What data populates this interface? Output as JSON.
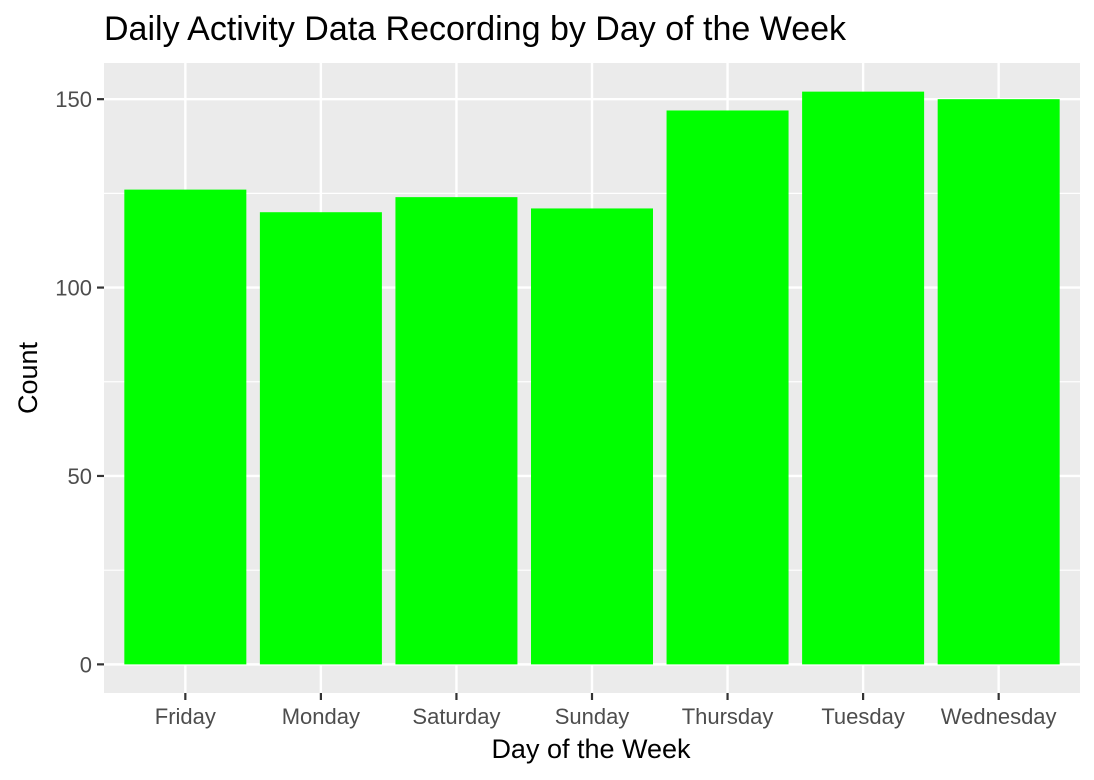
{
  "chart_data": {
    "type": "bar",
    "title": "Daily Activity Data Recording by Day of the Week",
    "xlabel": "Day of the Week",
    "ylabel": "Count",
    "categories": [
      "Friday",
      "Monday",
      "Saturday",
      "Sunday",
      "Thursday",
      "Tuesday",
      "Wednesday"
    ],
    "values": [
      126,
      120,
      124,
      121,
      147,
      152,
      150
    ],
    "ylim": [
      -7.6,
      159.6
    ],
    "yticks": [
      0,
      50,
      100,
      150
    ],
    "ytick_labels": [
      "0",
      "50",
      "100",
      "150"
    ],
    "grid": true,
    "bar_color": "#00FF00",
    "panel_background": "#EBEBEB",
    "grid_color": "#FFFFFF"
  }
}
